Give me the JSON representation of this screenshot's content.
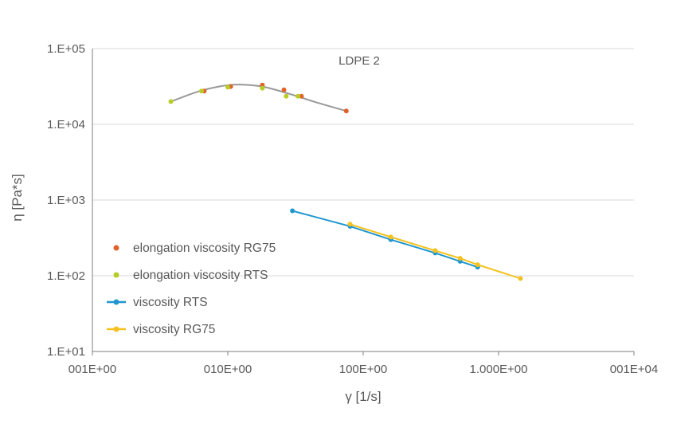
{
  "chart_data": {
    "type": "scatter",
    "title": "LDPE 2",
    "xlabel": "γ [1/s]",
    "ylabel": "η [Pa*s]",
    "x_scale": "log",
    "y_scale": "log",
    "xlim": [
      1,
      10000
    ],
    "ylim": [
      10,
      100000
    ],
    "x_tick_values": [
      1,
      10,
      100,
      1000,
      10000
    ],
    "x_tick_labels": [
      "001E+00",
      "010E+00",
      "100E+00",
      "1.000E+00",
      "001E+04"
    ],
    "y_tick_values": [
      10,
      100,
      1000,
      10000,
      100000
    ],
    "y_tick_labels": [
      "1.E+01",
      "1.E+02",
      "1.E+03",
      "1.E+04",
      "1.E+05"
    ],
    "grid": "horizontal",
    "legend_position": "left-middle",
    "series": [
      {
        "name": "elongation viscosity RG75",
        "kind": "markers",
        "color": "#e0622a",
        "points": [
          [
            6.7,
            27500
          ],
          [
            10.5,
            31500
          ],
          [
            18,
            33000
          ],
          [
            26,
            28500
          ],
          [
            35,
            23500
          ],
          [
            75,
            15000
          ]
        ]
      },
      {
        "name": "elongation viscosity RTS",
        "kind": "markers",
        "color": "#b8cc25",
        "points": [
          [
            3.8,
            20000
          ],
          [
            6.4,
            27500
          ],
          [
            10,
            31000
          ],
          [
            18,
            30000
          ],
          [
            27,
            23500
          ],
          [
            33,
            23500
          ]
        ]
      },
      {
        "name": "viscosity RTS",
        "kind": "line-markers",
        "color": "#1f96cf",
        "points": [
          [
            30,
            720
          ],
          [
            80,
            450
          ],
          [
            160,
            300
          ],
          [
            340,
            200
          ],
          [
            520,
            155
          ],
          [
            700,
            130
          ]
        ]
      },
      {
        "name": "viscosity RG75",
        "kind": "line-markers",
        "color": "#f4c220",
        "points": [
          [
            80,
            480
          ],
          [
            160,
            325
          ],
          [
            340,
            215
          ],
          [
            520,
            170
          ],
          [
            700,
            140
          ],
          [
            1450,
            92
          ]
        ]
      }
    ],
    "trendlines": [
      {
        "color": "#999999",
        "points": [
          [
            3.8,
            20000
          ],
          [
            6,
            27000
          ],
          [
            9,
            32000
          ],
          [
            12,
            33500
          ],
          [
            18,
            31500
          ],
          [
            28,
            25500
          ],
          [
            45,
            19500
          ],
          [
            75,
            15000
          ]
        ]
      }
    ],
    "colors": {
      "grid": "#d9d9d9",
      "axis": "#7f7f7f",
      "text": "#595959"
    }
  }
}
